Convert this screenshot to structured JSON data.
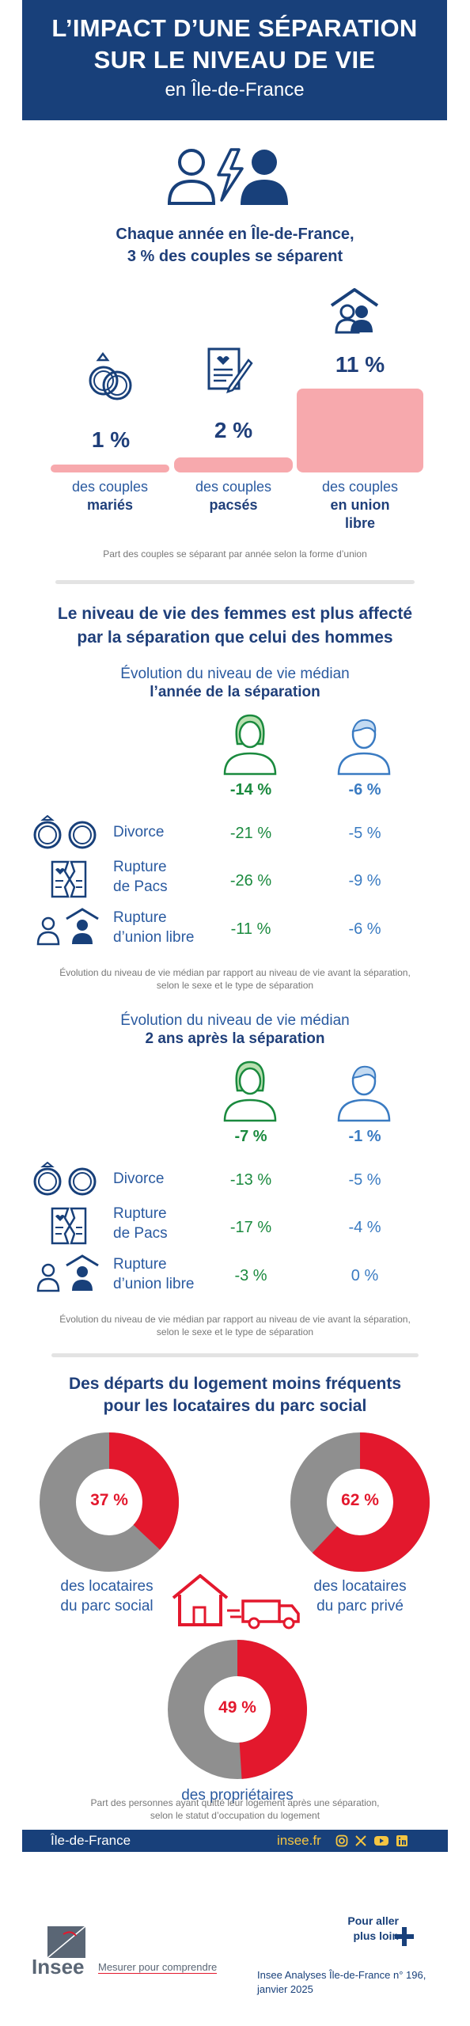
{
  "header": {
    "line1": "L’IMPACT D’UNE SÉPARATION",
    "line2": "SUR LE NIVEAU DE VIE",
    "line3": "en Île-de-France"
  },
  "section1": {
    "title_line1": "Chaque année en Île-de-France,",
    "title_line2": "3 % des couples se séparent",
    "items": [
      {
        "pct": "1 %",
        "cap1": "des couples",
        "cap2": "mariés",
        "value": 1
      },
      {
        "pct": "2 %",
        "cap1": "des couples",
        "cap2": "pacsés",
        "value": 2
      },
      {
        "pct": "11 %",
        "cap1": "des couples",
        "cap2": "en union",
        "cap3": "libre",
        "value": 11
      }
    ],
    "note": "Part des couples se séparant par année selon la forme d’union"
  },
  "section2": {
    "title_line1": "Le niveau de vie des femmes est plus affecté",
    "title_line2": "par la séparation que celui des hommes",
    "table1": {
      "sub1": "Évolution du niveau de vie médian",
      "sub2": "l’année de la séparation",
      "women_total": "-14 %",
      "men_total": "-6 %",
      "rows": [
        {
          "label1": "Divorce",
          "label2": "",
          "women": "-21 %",
          "men": "-5 %"
        },
        {
          "label1": "Rupture",
          "label2": "de Pacs",
          "women": "-26 %",
          "men": "-9 %"
        },
        {
          "label1": "Rupture",
          "label2": "d’union libre",
          "women": "-11 %",
          "men": "-6 %"
        }
      ],
      "note1": "Évolution du niveau de vie médian par rapport au niveau de vie avant la séparation,",
      "note2": "selon le sexe et le type de séparation"
    },
    "table2": {
      "sub1": "Évolution du niveau de vie médian",
      "sub2": "2 ans après la séparation",
      "women_total": "-7 %",
      "men_total": "-1 %",
      "rows": [
        {
          "label1": "Divorce",
          "label2": "",
          "women": "-13 %",
          "men": "-5 %"
        },
        {
          "label1": "Rupture",
          "label2": "de Pacs",
          "women": "-17 %",
          "men": "-4 %"
        },
        {
          "label1": "Rupture",
          "label2": "d’union libre",
          "women": "-3 %",
          "men": "0 %"
        }
      ],
      "note1": "Évolution du niveau de vie médian par rapport au niveau de vie avant la séparation,",
      "note2": "selon le sexe et le type de séparation"
    }
  },
  "section3": {
    "title_line1": "Des départs du logement moins fréquents",
    "title_line2": "pour les locataires du parc social",
    "donuts": [
      {
        "pct": "37 %",
        "value": 37,
        "cap1": "des locataires",
        "cap2": "du parc social"
      },
      {
        "pct": "62 %",
        "value": 62,
        "cap1": "des locataires",
        "cap2": "du parc privé"
      },
      {
        "pct": "49 %",
        "value": 49,
        "cap1": "des propriétaires",
        "cap2": ""
      }
    ],
    "note1": "Part des personnes ayant quitté leur logement après une séparation,",
    "note2": "selon le statut d’occupation du logement"
  },
  "footer": {
    "region": "Île-de-France",
    "site": "insee.fr",
    "more1": "Pour aller",
    "more2": "plus loin",
    "brand": "Insee",
    "tagline": "Mesurer pour comprendre",
    "ref1": "Insee Analyses Île-de-France n° 196,",
    "ref2": "janvier 2025"
  },
  "colors": {
    "navy": "#18407a",
    "green": "#1a8a3e",
    "blue": "#3a7bc2",
    "red": "#e3182d",
    "pink": "#f7a9ad",
    "grey": "#8f8f8f"
  }
}
